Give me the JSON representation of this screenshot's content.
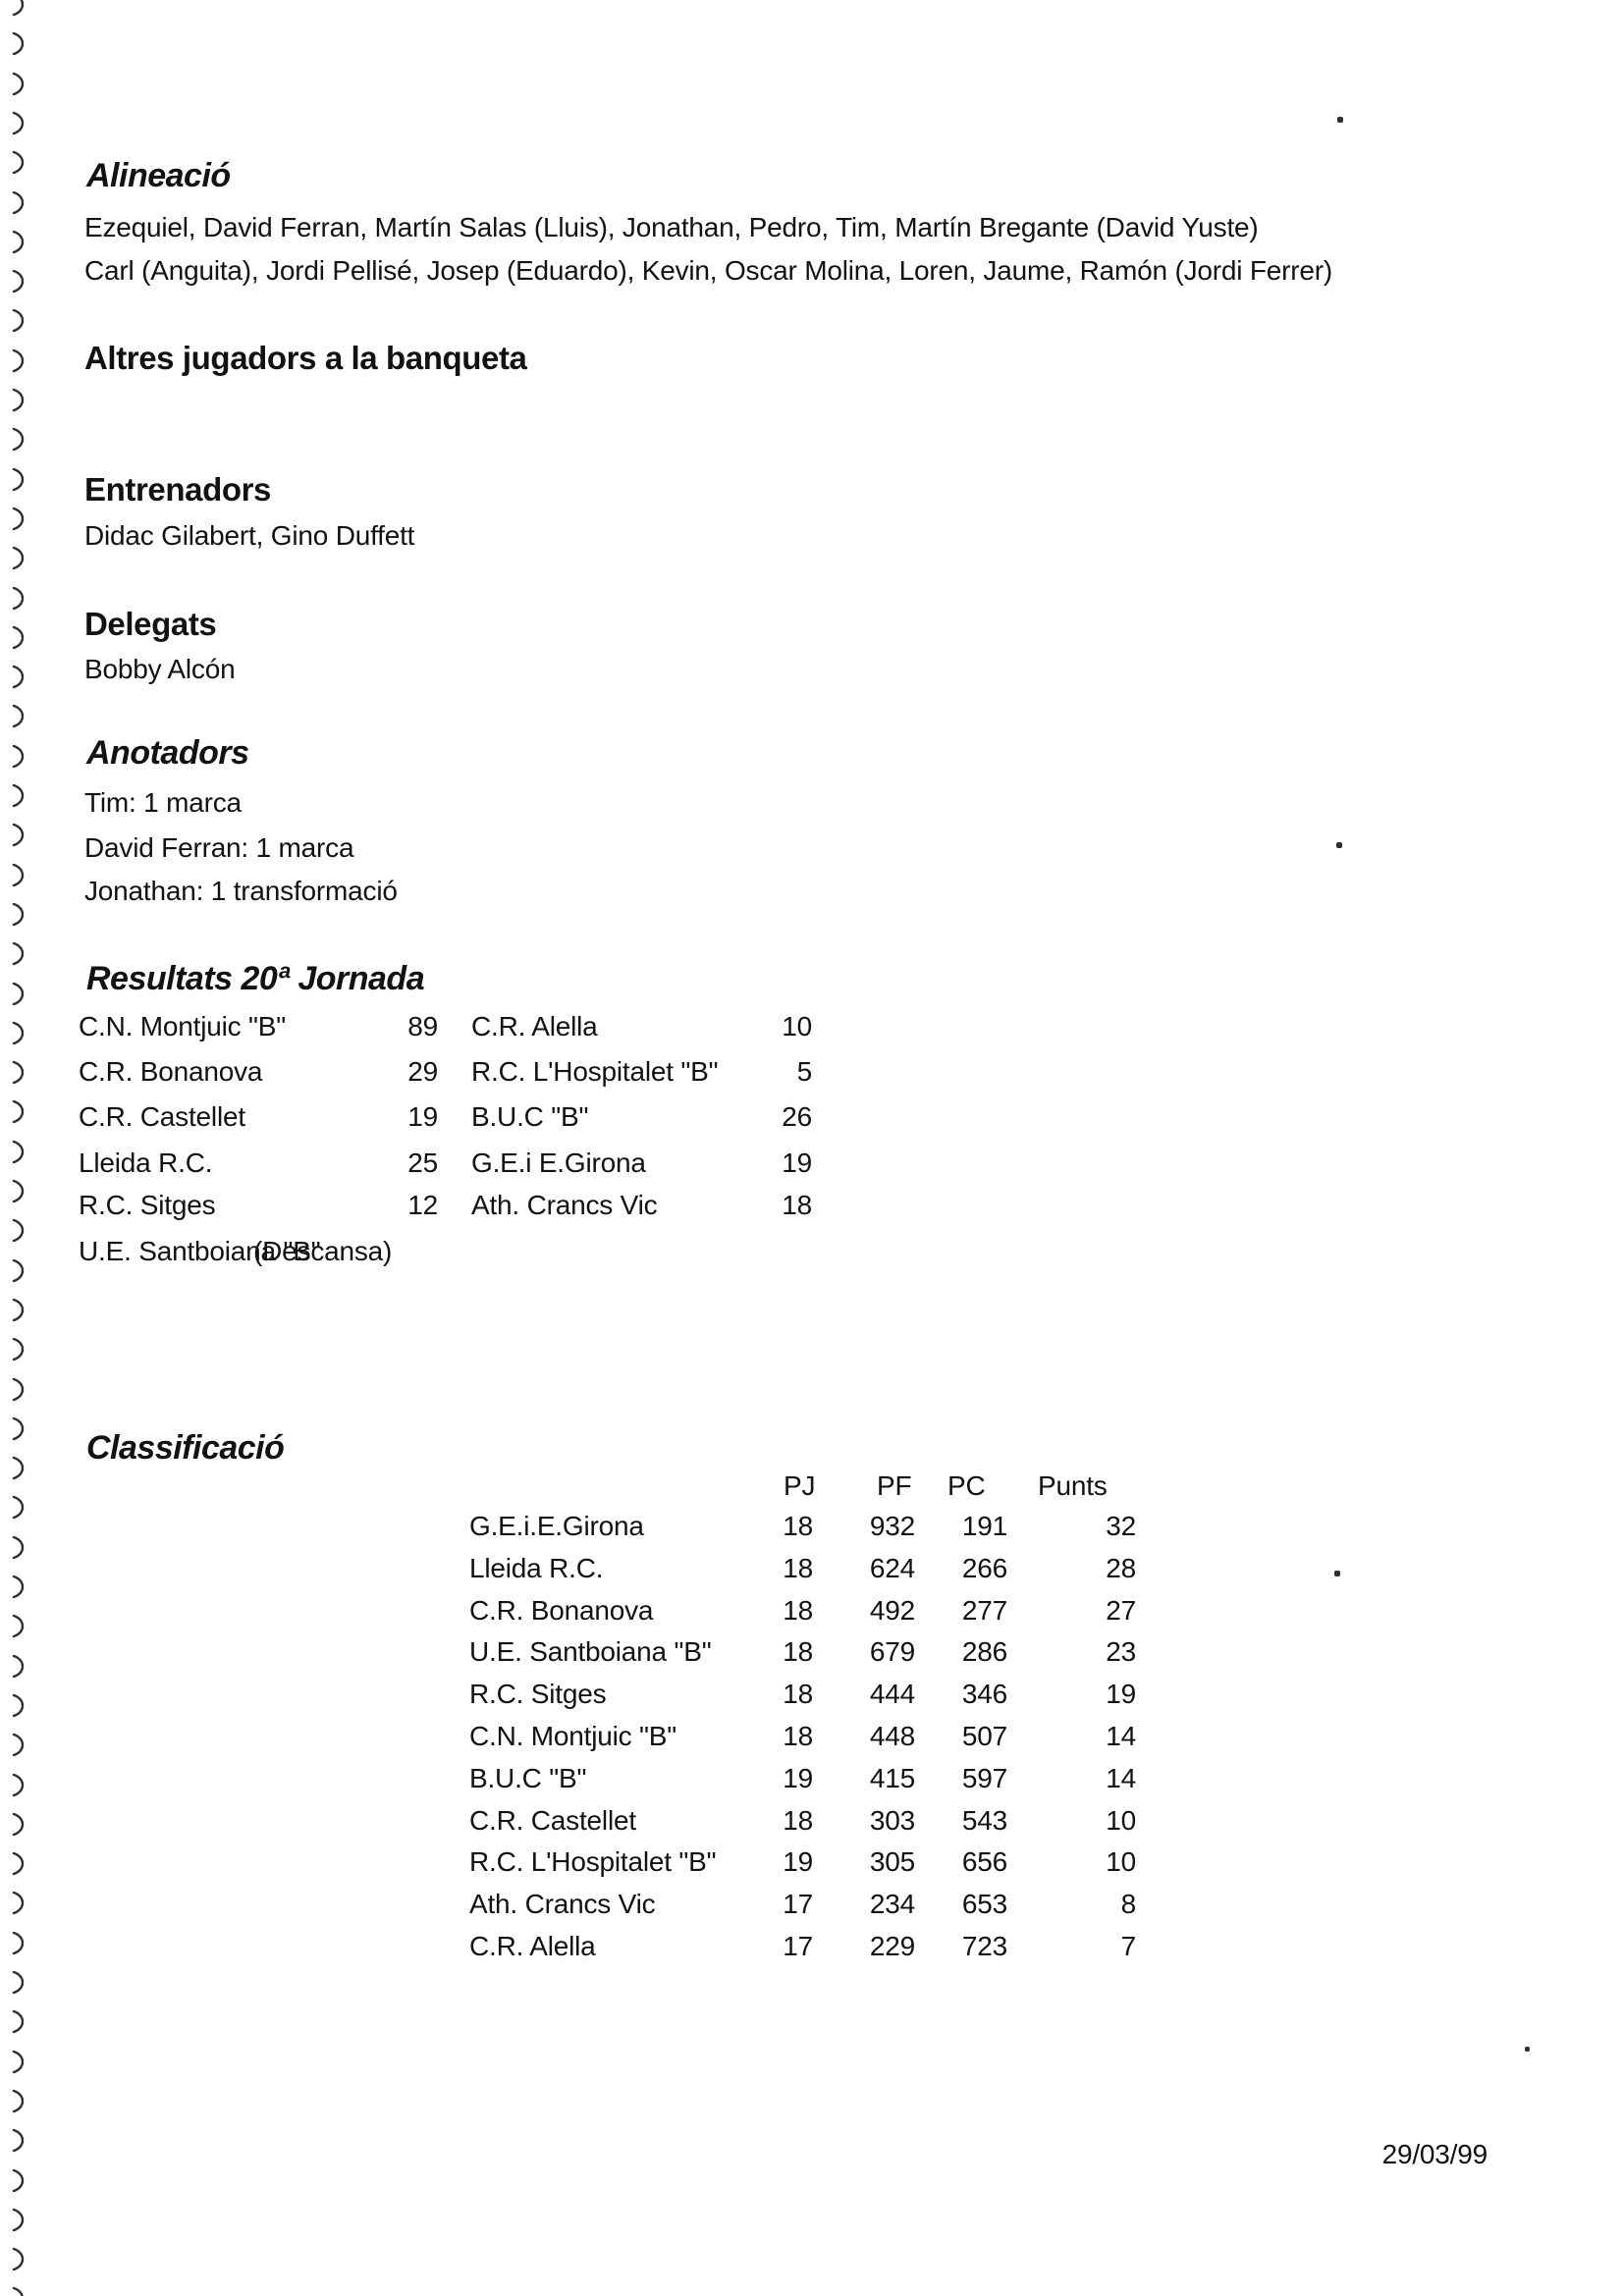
{
  "page": {
    "binding_marks": 59,
    "date": "29/03/99"
  },
  "sections": {
    "alineacio": {
      "title": "Alineació",
      "line1": "Ezequiel, David Ferran, Martín Salas (Lluis), Jonathan, Pedro, Tim, Martín Bregante (David Yuste)",
      "line2": "Carl (Anguita), Jordi Pellisé, Josep (Eduardo), Kevin, Oscar Molina, Loren, Jaume, Ramón (Jordi Ferrer)"
    },
    "banqueta": {
      "title": "Altres jugadors a la banqueta"
    },
    "entrenadors": {
      "title": "Entrenadors",
      "names": "Didac Gilabert, Gino Duffett"
    },
    "delegats": {
      "title": "Delegats",
      "names": "Bobby Alcón"
    },
    "anotadors": {
      "title": "Anotadors",
      "lines": [
        "Tim: 1 marca",
        "David Ferran: 1 marca",
        "Jonathan: 1 transformació"
      ]
    },
    "resultats": {
      "title": "Resultats 20ª Jornada",
      "matches": [
        {
          "home": "C.N. Montjuic \"B\"",
          "home_score": "89",
          "away": "C.R. Alella",
          "away_score": "10"
        },
        {
          "home": "C.R. Bonanova",
          "home_score": "29",
          "away": "R.C. L'Hospitalet \"B\"",
          "away_score": "5"
        },
        {
          "home": "C.R. Castellet",
          "home_score": "19",
          "away": "B.U.C \"B\"",
          "away_score": "26"
        },
        {
          "home": "Lleida R.C.",
          "home_score": "25",
          "away": "G.E.i E.Girona",
          "away_score": "19"
        },
        {
          "home": "R.C. Sitges",
          "home_score": "12",
          "away": "Ath. Crancs Vic",
          "away_score": "18"
        }
      ],
      "bye": {
        "team": "U.E. Santboiana \"B\"",
        "note": "(Descansa)"
      }
    },
    "classificacio": {
      "title": "Classificació",
      "columns": {
        "pj": "PJ",
        "pf": "PF",
        "pc": "PC",
        "punts": "Punts"
      },
      "rows": [
        {
          "team": "G.E.i.E.Girona",
          "pj": "18",
          "pf": "932",
          "pc": "191",
          "punts": "32"
        },
        {
          "team": "Lleida R.C.",
          "pj": "18",
          "pf": "624",
          "pc": "266",
          "punts": "28"
        },
        {
          "team": "C.R. Bonanova",
          "pj": "18",
          "pf": "492",
          "pc": "277",
          "punts": "27"
        },
        {
          "team": "U.E. Santboiana \"B\"",
          "pj": "18",
          "pf": "679",
          "pc": "286",
          "punts": "23"
        },
        {
          "team": "R.C. Sitges",
          "pj": "18",
          "pf": "444",
          "pc": "346",
          "punts": "19"
        },
        {
          "team": "C.N. Montjuic \"B\"",
          "pj": "18",
          "pf": "448",
          "pc": "507",
          "punts": "14"
        },
        {
          "team": "B.U.C \"B\"",
          "pj": "19",
          "pf": "415",
          "pc": "597",
          "punts": "14"
        },
        {
          "team": "C.R. Castellet",
          "pj": "18",
          "pf": "303",
          "pc": "543",
          "punts": "10"
        },
        {
          "team": "R.C. L'Hospitalet \"B\"",
          "pj": "19",
          "pf": "305",
          "pc": "656",
          "punts": "10"
        },
        {
          "team": "Ath. Crancs Vic",
          "pj": "17",
          "pf": "234",
          "pc": "653",
          "punts": "8"
        },
        {
          "team": "C.R. Alella",
          "pj": "17",
          "pf": "229",
          "pc": "723",
          "punts": "7"
        }
      ]
    }
  }
}
